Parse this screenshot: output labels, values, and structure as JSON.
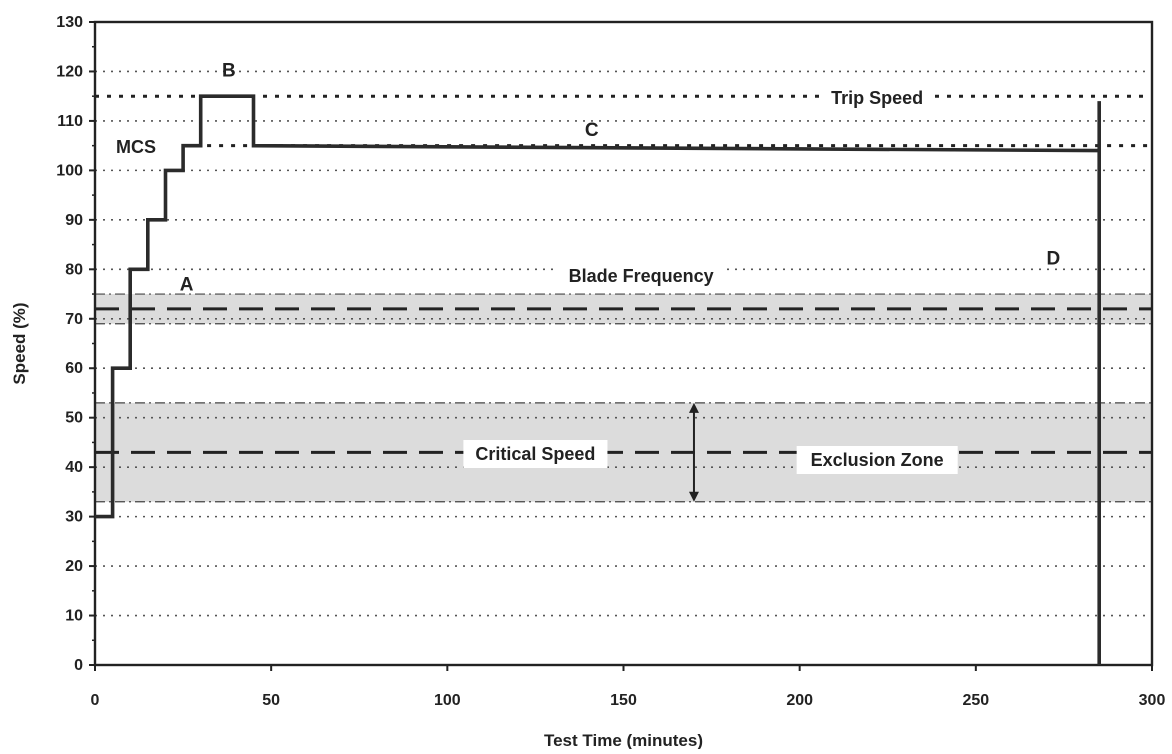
{
  "chart_data": {
    "type": "line",
    "title": "",
    "xlabel": "Test Time (minutes)",
    "ylabel": "Speed (%)",
    "xlim": [
      0,
      300
    ],
    "ylim": [
      0,
      130
    ],
    "xticks": [
      "0",
      "50",
      "100",
      "150",
      "200",
      "250",
      "300"
    ],
    "yticks": [
      "0",
      "10",
      "20",
      "30",
      "40",
      "50",
      "60",
      "70",
      "80",
      "90",
      "100",
      "110",
      "120",
      "130"
    ],
    "grid": "horizontal dotted",
    "series": [
      {
        "name": "",
        "x": [
          0,
          5,
          5,
          10,
          10,
          15,
          15,
          20,
          20,
          25,
          25,
          30,
          30,
          45,
          45,
          285,
          285,
          285
        ],
        "y": [
          30,
          30,
          60,
          60,
          80,
          80,
          90,
          90,
          100,
          100,
          105,
          105,
          115,
          115,
          105,
          104,
          114,
          0
        ]
      }
    ],
    "reference_lines": {
      "trip_speed": 115,
      "mcs": 105,
      "blade_frequency": 72,
      "critical_speed": 43
    },
    "bands": {
      "blade_frequency": [
        69,
        75
      ],
      "exclusion_zone": [
        33,
        53
      ]
    },
    "annotations": {
      "trip_speed": "Trip Speed",
      "mcs": "MCS",
      "blade_frequency": "Blade Frequency",
      "critical_speed": "Critical Speed",
      "exclusion_zone": "Exclusion Zone",
      "point_a": "A",
      "point_b": "B",
      "point_c": "C",
      "point_d": "D"
    },
    "colors": {
      "line": "#2b2b2b",
      "band": "#dcdcdc",
      "grid": "#555555"
    }
  }
}
